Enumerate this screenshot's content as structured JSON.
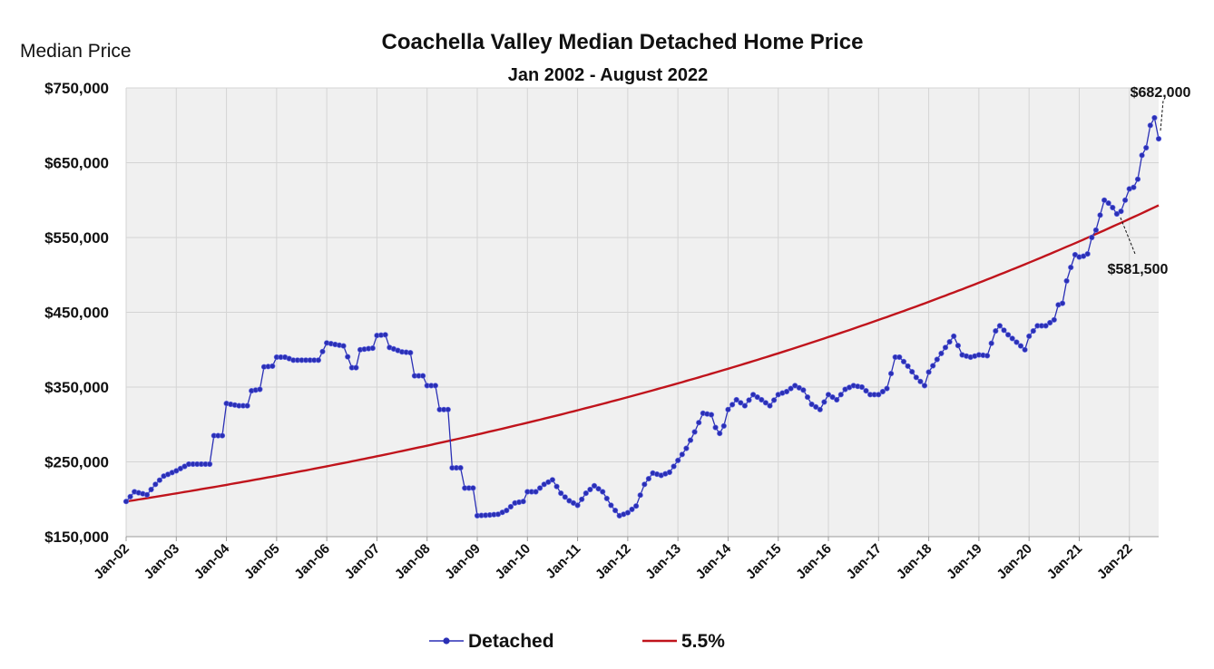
{
  "chart_data": {
    "type": "line",
    "title": "Coachella Valley Median Detached Home Price",
    "subtitle": "Jan 2002 - August 2022",
    "ylabel": "Median Price",
    "xlabel": "",
    "ylim": [
      150000,
      750000
    ],
    "yticks": [
      150000,
      250000,
      350000,
      450000,
      550000,
      650000,
      750000
    ],
    "ytick_labels": [
      "$150,000",
      "$250,000",
      "$350,000",
      "$450,000",
      "$550,000",
      "$650,000",
      "$750,000"
    ],
    "xtick_labels": [
      "Jan-02",
      "Jan-03",
      "Jan-04",
      "Jan-05",
      "Jan-06",
      "Jan-07",
      "Jan-08",
      "Jan-09",
      "Jan-10",
      "Jan-11",
      "Jan-12",
      "Jan-13",
      "Jan-14",
      "Jan-15",
      "Jan-16",
      "Jan-17",
      "Jan-18",
      "Jan-19",
      "Jan-20",
      "Jan-21",
      "Jan-22"
    ],
    "x_start": "2002-01",
    "x_end": "2022-08",
    "grid": true,
    "legend": "bottom",
    "series": [
      {
        "name": "Detached",
        "color": "#2a2fb5",
        "marker": "circle",
        "anchors": [
          [
            "2002-01",
            197000
          ],
          [
            "2002-03",
            210000
          ],
          [
            "2002-06",
            206000
          ],
          [
            "2002-08",
            220000
          ],
          [
            "2002-10",
            231000
          ],
          [
            "2003-01",
            238000
          ],
          [
            "2003-04",
            247000
          ],
          [
            "2003-09",
            247000
          ],
          [
            "2003-10",
            285000
          ],
          [
            "2003-12",
            285000
          ],
          [
            "2004-01",
            328000
          ],
          [
            "2004-04",
            325000
          ],
          [
            "2004-06",
            325000
          ],
          [
            "2004-07",
            345000
          ],
          [
            "2004-09",
            347000
          ],
          [
            "2004-10",
            377000
          ],
          [
            "2004-12",
            378000
          ],
          [
            "2005-01",
            390000
          ],
          [
            "2005-03",
            390000
          ],
          [
            "2005-05",
            386000
          ],
          [
            "2005-08",
            386000
          ],
          [
            "2005-11",
            386000
          ],
          [
            "2006-01",
            409000
          ],
          [
            "2006-05",
            405000
          ],
          [
            "2006-07",
            376000
          ],
          [
            "2006-08",
            376000
          ],
          [
            "2006-09",
            400000
          ],
          [
            "2006-12",
            402000
          ],
          [
            "2007-01",
            419000
          ],
          [
            "2007-03",
            420000
          ],
          [
            "2007-04",
            403000
          ],
          [
            "2007-07",
            397000
          ],
          [
            "2007-09",
            396000
          ],
          [
            "2007-10",
            365000
          ],
          [
            "2007-12",
            365000
          ],
          [
            "2008-01",
            352000
          ],
          [
            "2008-03",
            352000
          ],
          [
            "2008-04",
            320000
          ],
          [
            "2008-06",
            320000
          ],
          [
            "2008-07",
            242000
          ],
          [
            "2008-09",
            242000
          ],
          [
            "2008-10",
            215000
          ],
          [
            "2008-12",
            215000
          ],
          [
            "2009-01",
            178000
          ],
          [
            "2009-04",
            179000
          ],
          [
            "2009-06",
            180000
          ],
          [
            "2009-08",
            185000
          ],
          [
            "2009-10",
            195000
          ],
          [
            "2009-12",
            197000
          ],
          [
            "2010-01",
            210000
          ],
          [
            "2010-03",
            210000
          ],
          [
            "2010-05",
            220000
          ],
          [
            "2010-07",
            226000
          ],
          [
            "2010-09",
            208000
          ],
          [
            "2010-11",
            198000
          ],
          [
            "2011-01",
            192000
          ],
          [
            "2011-03",
            208000
          ],
          [
            "2011-05",
            218000
          ],
          [
            "2011-07",
            210000
          ],
          [
            "2011-09",
            192000
          ],
          [
            "2011-11",
            178000
          ],
          [
            "2012-01",
            182000
          ],
          [
            "2012-03",
            191000
          ],
          [
            "2012-05",
            220000
          ],
          [
            "2012-07",
            235000
          ],
          [
            "2012-09",
            232000
          ],
          [
            "2012-11",
            236000
          ],
          [
            "2013-01",
            252000
          ],
          [
            "2013-03",
            268000
          ],
          [
            "2013-05",
            290000
          ],
          [
            "2013-07",
            315000
          ],
          [
            "2013-09",
            313000
          ],
          [
            "2013-10",
            296000
          ],
          [
            "2013-11",
            288000
          ],
          [
            "2013-12",
            298000
          ],
          [
            "2014-01",
            320000
          ],
          [
            "2014-03",
            333000
          ],
          [
            "2014-05",
            325000
          ],
          [
            "2014-07",
            340000
          ],
          [
            "2014-09",
            333000
          ],
          [
            "2014-11",
            325000
          ],
          [
            "2015-01",
            340000
          ],
          [
            "2015-03",
            344000
          ],
          [
            "2015-05",
            352000
          ],
          [
            "2015-07",
            346000
          ],
          [
            "2015-09",
            327000
          ],
          [
            "2015-11",
            320000
          ],
          [
            "2016-01",
            340000
          ],
          [
            "2016-03",
            333000
          ],
          [
            "2016-05",
            347000
          ],
          [
            "2016-07",
            352000
          ],
          [
            "2016-09",
            350000
          ],
          [
            "2016-11",
            340000
          ],
          [
            "2017-01",
            340000
          ],
          [
            "2017-03",
            348000
          ],
          [
            "2017-04",
            368000
          ],
          [
            "2017-05",
            390000
          ],
          [
            "2017-06",
            390000
          ],
          [
            "2017-08",
            378000
          ],
          [
            "2017-10",
            363000
          ],
          [
            "2017-12",
            352000
          ],
          [
            "2018-01",
            370000
          ],
          [
            "2018-03",
            387000
          ],
          [
            "2018-05",
            403000
          ],
          [
            "2018-07",
            418000
          ],
          [
            "2018-09",
            393000
          ],
          [
            "2018-11",
            390000
          ],
          [
            "2019-01",
            393000
          ],
          [
            "2019-03",
            392000
          ],
          [
            "2019-05",
            425000
          ],
          [
            "2019-06",
            432000
          ],
          [
            "2019-08",
            420000
          ],
          [
            "2019-10",
            410000
          ],
          [
            "2019-12",
            400000
          ],
          [
            "2020-01",
            418000
          ],
          [
            "2020-03",
            432000
          ],
          [
            "2020-05",
            432000
          ],
          [
            "2020-07",
            440000
          ],
          [
            "2020-08",
            460000
          ],
          [
            "2020-09",
            462000
          ],
          [
            "2020-10",
            492000
          ],
          [
            "2020-11",
            510000
          ],
          [
            "2020-12",
            527000
          ],
          [
            "2021-01",
            524000
          ],
          [
            "2021-02",
            525000
          ],
          [
            "2021-03",
            528000
          ],
          [
            "2021-04",
            550000
          ],
          [
            "2021-05",
            560000
          ],
          [
            "2021-06",
            580000
          ],
          [
            "2021-07",
            600000
          ],
          [
            "2021-08",
            596000
          ],
          [
            "2021-09",
            590000
          ],
          [
            "2021-10",
            581500
          ],
          [
            "2021-11",
            585000
          ],
          [
            "2021-12",
            600000
          ],
          [
            "2022-01",
            615000
          ],
          [
            "2022-02",
            617000
          ],
          [
            "2022-03",
            628000
          ],
          [
            "2022-04",
            660000
          ],
          [
            "2022-05",
            670000
          ],
          [
            "2022-06",
            700000
          ],
          [
            "2022-07",
            710000
          ],
          [
            "2022-08",
            682000
          ]
        ]
      },
      {
        "name": "5.5%",
        "color": "#c0141c",
        "marker": "none",
        "start": 197000,
        "annual_rate": 0.055
      }
    ],
    "annotations": [
      {
        "text": "$682,000",
        "x": "2022-08",
        "y": 682000
      },
      {
        "text": "$581,500",
        "x": "2021-10",
        "y": 581500
      }
    ]
  }
}
